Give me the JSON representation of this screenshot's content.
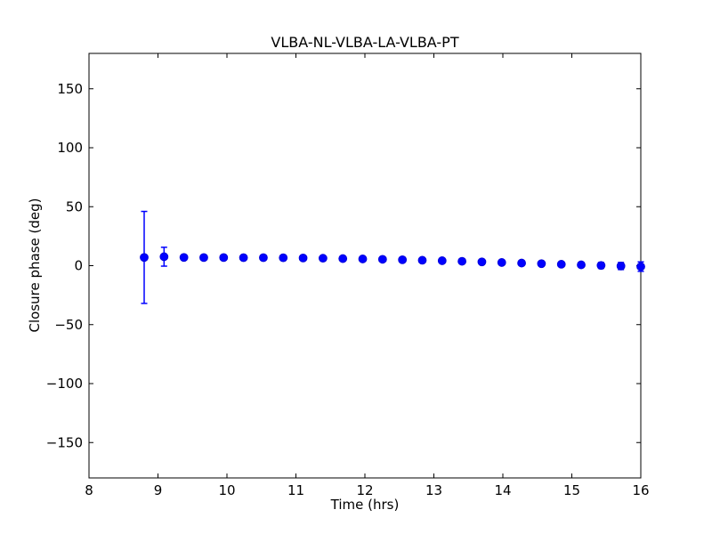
{
  "figure": {
    "background": "#ffffff",
    "frame_color": "#000000"
  },
  "chart_data": {
    "type": "scatter",
    "subtype": "errorbar",
    "title": "VLBA-NL-VLBA-LA-VLBA-PT",
    "xlabel": "Time (hrs)",
    "ylabel": "Closure phase (deg)",
    "xlim": [
      8,
      16
    ],
    "ylim": [
      -180,
      180
    ],
    "xticks": [
      8,
      9,
      10,
      11,
      12,
      13,
      14,
      15,
      16
    ],
    "xtick_labels": [
      "8",
      "9",
      "10",
      "11",
      "12",
      "13",
      "14",
      "15",
      "16"
    ],
    "yticks": [
      -150,
      -100,
      -50,
      0,
      50,
      100,
      150
    ],
    "ytick_labels": [
      "−150",
      "−100",
      "−50",
      "0",
      "50",
      "100",
      "150"
    ],
    "grid": false,
    "legend": null,
    "marker_color": "#0000ff",
    "marker_edge_color": "#0000dd",
    "errorbar_color": "#0000ff",
    "x": [
      8.8,
      9.088,
      9.376,
      9.664,
      9.952,
      10.24,
      10.528,
      10.816,
      11.104,
      11.392,
      11.68,
      11.968,
      12.256,
      12.544,
      12.832,
      13.12,
      13.408,
      13.696,
      13.984,
      14.272,
      14.56,
      14.848,
      15.136,
      15.424,
      15.712,
      16.0
    ],
    "y": [
      7.0,
      7.6,
      7.0,
      6.9,
      6.9,
      6.8,
      6.8,
      6.7,
      6.5,
      6.3,
      6.0,
      5.7,
      5.4,
      5.0,
      4.6,
      4.2,
      3.7,
      3.2,
      2.7,
      2.2,
      1.7,
      1.2,
      0.7,
      0.2,
      -0.3,
      -0.8
    ],
    "yerr": [
      39,
      8,
      2,
      2,
      1.5,
      1.5,
      1.2,
      1.2,
      1.0,
      1.0,
      1.0,
      1.0,
      1.0,
      1.0,
      1.0,
      1.0,
      1.0,
      1.0,
      1.2,
      1.2,
      1.5,
      1.5,
      2.0,
      2.5,
      3.0,
      4.0
    ]
  }
}
